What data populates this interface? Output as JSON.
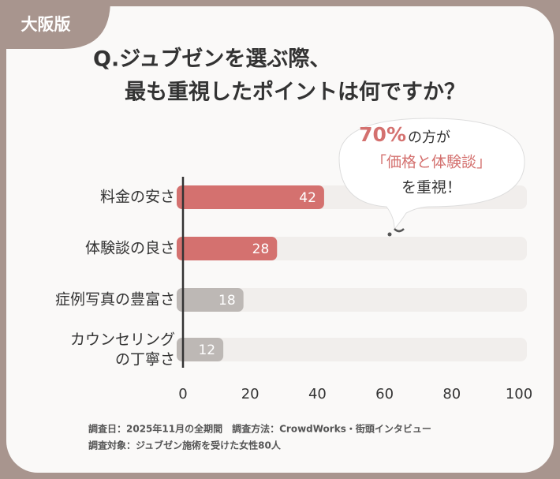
{
  "badge": "大阪版",
  "chart_data": {
    "type": "bar",
    "orientation": "horizontal",
    "title_lines": [
      "Q.ジュブゼンを選ぶ際、",
      "最も重視したポイントは何ですか？"
    ],
    "categories": [
      "料金の安さ",
      "体験談の良さ",
      "症例写真の豊富さ",
      "カウンセリング\nの丁寧さ"
    ],
    "values": [
      42,
      28,
      18,
      12
    ],
    "colors": [
      "#d4716f",
      "#d4716f",
      "#bdb8b5",
      "#bdb8b5"
    ],
    "track_color": "#f1eeec",
    "xlim": [
      0,
      100
    ],
    "xticks": [
      0,
      20,
      40,
      60,
      80,
      100
    ],
    "callout": {
      "highlight": "70%",
      "line1": "の方が",
      "line2": "「価格と体験談」",
      "line3": "を重視！"
    }
  },
  "footnote": [
    "調査日：2025年11月の全期間　調査方法：CrowdWorks・街頭インタビュー",
    "調査対象：ジュブゼン施術を受けた女性80人"
  ]
}
